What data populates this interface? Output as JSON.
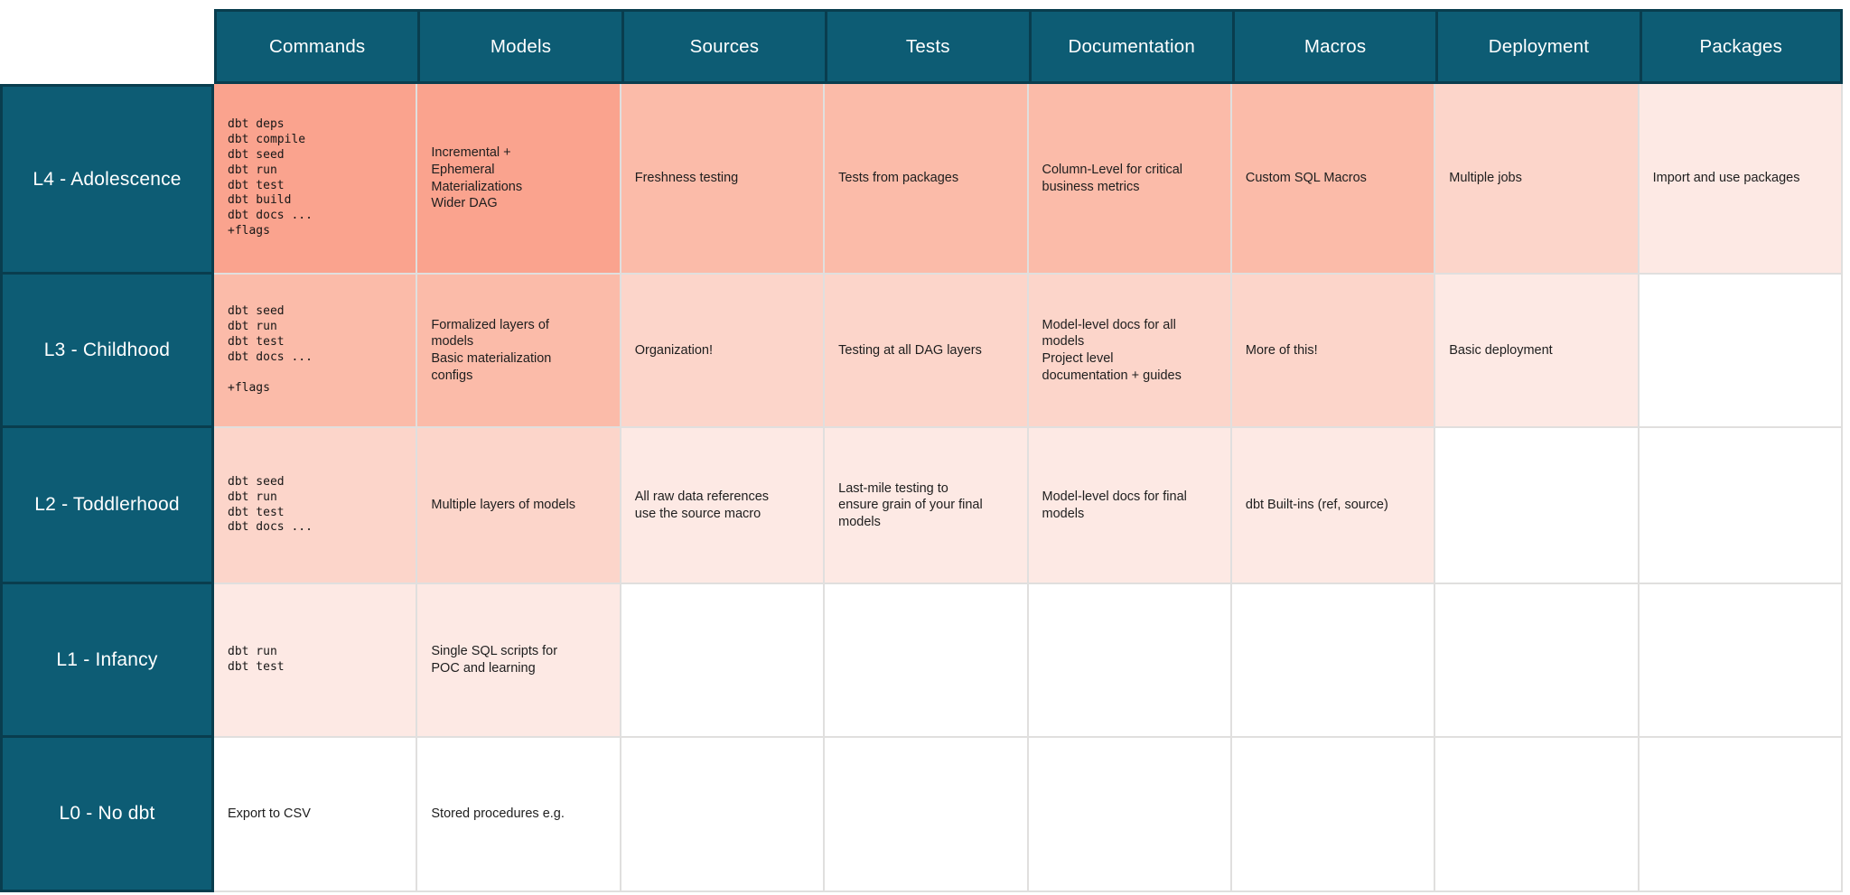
{
  "palette": {
    "teal": "#0D5C74",
    "teal_border": "#093D4E",
    "gridline": "#E0DFDE",
    "header_text": "#FFFFFF",
    "body_text": "#1E1E1E",
    "heat": [
      "#FFFFFF",
      "#FAA38E",
      "#FBBBA9",
      "#FCD5CA",
      "#FDE9E4"
    ]
  },
  "table": {
    "columns": [
      "Commands",
      "Models",
      "Sources",
      "Tests",
      "Documentation",
      "Macros",
      "Deployment",
      "Packages"
    ],
    "rows": [
      {
        "label": "L4 - Adolescence",
        "cells": [
          {
            "text": "dbt deps\ndbt compile\ndbt seed\ndbt run\ndbt test\ndbt build\ndbt docs ...\n+flags",
            "mono": true,
            "heat": 1
          },
          {
            "text": "Incremental +\nEphemeral\nMaterializations\nWider DAG",
            "heat": 1
          },
          {
            "text": "Freshness testing",
            "heat": 2
          },
          {
            "text": "Tests from packages",
            "heat": 2
          },
          {
            "text": "Column-Level for critical\nbusiness metrics",
            "heat": 2
          },
          {
            "text": "Custom SQL Macros",
            "heat": 2
          },
          {
            "text": "Multiple jobs",
            "heat": 3
          },
          {
            "text": "Import and use packages",
            "heat": 4
          }
        ]
      },
      {
        "label": "L3 - Childhood",
        "cells": [
          {
            "text": "dbt seed\ndbt run\ndbt test\ndbt docs ...\n\n+flags",
            "mono": true,
            "heat": 2
          },
          {
            "text": "Formalized layers of\nmodels\nBasic materialization\nconfigs",
            "heat": 2
          },
          {
            "text": "Organization!",
            "heat": 3
          },
          {
            "text": "Testing at all DAG layers",
            "heat": 3
          },
          {
            "text": "Model-level docs for all\nmodels\nProject level\ndocumentation + guides",
            "heat": 3
          },
          {
            "text": "More of this!",
            "heat": 3
          },
          {
            "text": "Basic deployment",
            "heat": 4
          },
          {
            "text": "",
            "heat": 0
          }
        ]
      },
      {
        "label": "L2 - Toddlerhood",
        "cells": [
          {
            "text": "dbt seed\ndbt run\ndbt test\ndbt docs ...",
            "mono": true,
            "heat": 3
          },
          {
            "text": "Multiple layers of models",
            "heat": 3
          },
          {
            "text": "All raw data references\nuse the source macro",
            "heat": 4
          },
          {
            "text": "Last-mile testing to\nensure grain of your final\nmodels",
            "heat": 4
          },
          {
            "text": "Model-level docs for final\nmodels",
            "heat": 4
          },
          {
            "text": "dbt Built-ins (ref, source)",
            "heat": 4
          },
          {
            "text": "",
            "heat": 0
          },
          {
            "text": "",
            "heat": 0
          }
        ]
      },
      {
        "label": "L1 - Infancy",
        "cells": [
          {
            "text": "dbt run\ndbt test",
            "mono": true,
            "heat": 4
          },
          {
            "text": "Single SQL scripts for\nPOC and learning",
            "heat": 4
          },
          {
            "text": "",
            "heat": 0
          },
          {
            "text": "",
            "heat": 0
          },
          {
            "text": "",
            "heat": 0
          },
          {
            "text": "",
            "heat": 0
          },
          {
            "text": "",
            "heat": 0
          },
          {
            "text": "",
            "heat": 0
          }
        ]
      },
      {
        "label": "L0 - No dbt",
        "cells": [
          {
            "text": "Export to CSV",
            "heat": 0
          },
          {
            "text": "Stored procedures e.g.",
            "heat": 0
          },
          {
            "text": "",
            "heat": 0
          },
          {
            "text": "",
            "heat": 0
          },
          {
            "text": "",
            "heat": 0
          },
          {
            "text": "",
            "heat": 0
          },
          {
            "text": "",
            "heat": 0
          },
          {
            "text": "",
            "heat": 0
          }
        ]
      }
    ]
  }
}
